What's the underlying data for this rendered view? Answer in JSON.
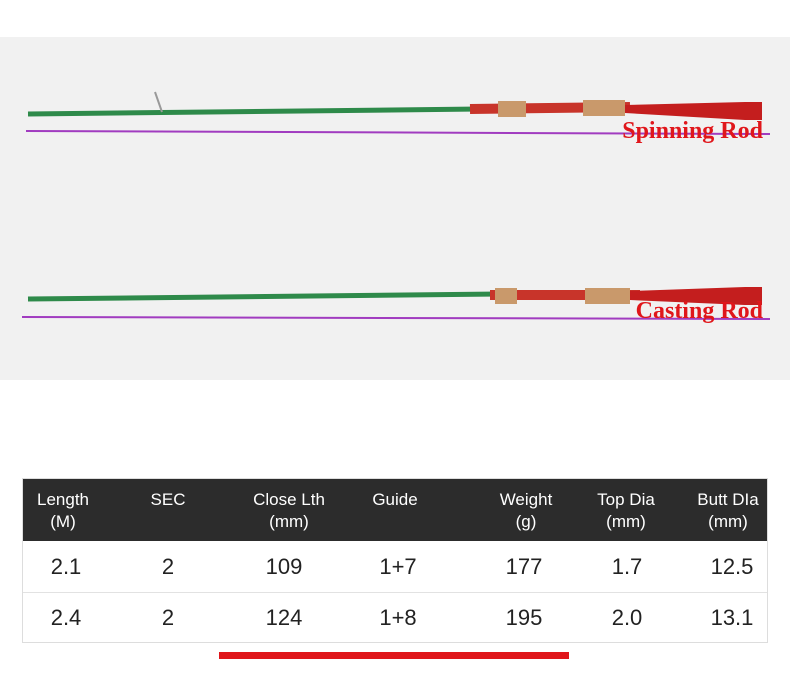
{
  "labels": {
    "spinning": "Spinning Rod",
    "casting": "Casting Rod"
  },
  "table": {
    "headers": [
      [
        "Length",
        "(M)"
      ],
      [
        "SEC"
      ],
      [
        "Close Lth",
        "(mm)"
      ],
      [
        "Guide"
      ],
      [
        "Weight",
        "(g)"
      ],
      [
        "Top Dia",
        "(mm)"
      ],
      [
        "Butt DIa",
        "(mm)"
      ]
    ],
    "rows": [
      [
        "2.1",
        "2",
        "109",
        "1+7",
        "177",
        "1.7",
        "12.5"
      ],
      [
        "2.4",
        "2",
        "124",
        "1+8",
        "195",
        "2.0",
        "13.1"
      ]
    ]
  }
}
